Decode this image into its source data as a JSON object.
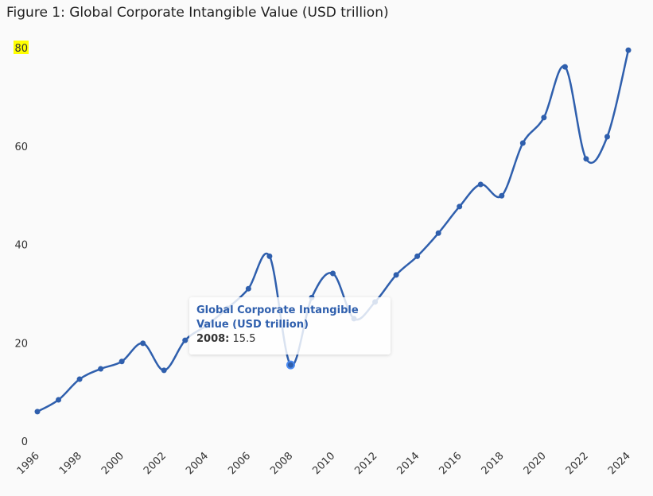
{
  "chart_data": {
    "type": "line",
    "title": "Figure 1: Global Corporate Intangible Value (USD trillion)",
    "series_name": "Global Corporate Intangible Value (USD trillion)",
    "x": [
      1996,
      1997,
      1998,
      1999,
      2000,
      2001,
      2002,
      2003,
      2004,
      2005,
      2006,
      2007,
      2008,
      2009,
      2010,
      2011,
      2012,
      2013,
      2014,
      2015,
      2016,
      2017,
      2018,
      2019,
      2020,
      2021,
      2022,
      2023,
      2024
    ],
    "values": [
      6.0,
      8.4,
      12.6,
      14.7,
      16.2,
      19.9,
      14.4,
      20.5,
      23.5,
      27.0,
      31.0,
      37.6,
      15.5,
      29.2,
      34.1,
      24.9,
      28.3,
      33.8,
      37.6,
      42.3,
      47.7,
      52.2,
      49.9,
      60.6,
      65.8,
      76.1,
      57.4,
      61.9,
      79.5
    ],
    "x_ticks": [
      "1996",
      "1998",
      "2000",
      "2002",
      "2004",
      "2006",
      "2008",
      "2010",
      "2012",
      "2014",
      "2016",
      "2018",
      "2020",
      "2022",
      "2024"
    ],
    "y_ticks": [
      "0",
      "20",
      "40",
      "60",
      "80"
    ],
    "ylim": [
      0,
      80
    ],
    "xlim": [
      1996,
      2024
    ],
    "grid": false,
    "line_color": "#2f5fad",
    "highlight_tick_color": "#ffff00",
    "tooltip": {
      "series": "Global Corporate Intangible Value (USD trillion)",
      "x_label": "2008:",
      "y_value": "15.5"
    }
  }
}
